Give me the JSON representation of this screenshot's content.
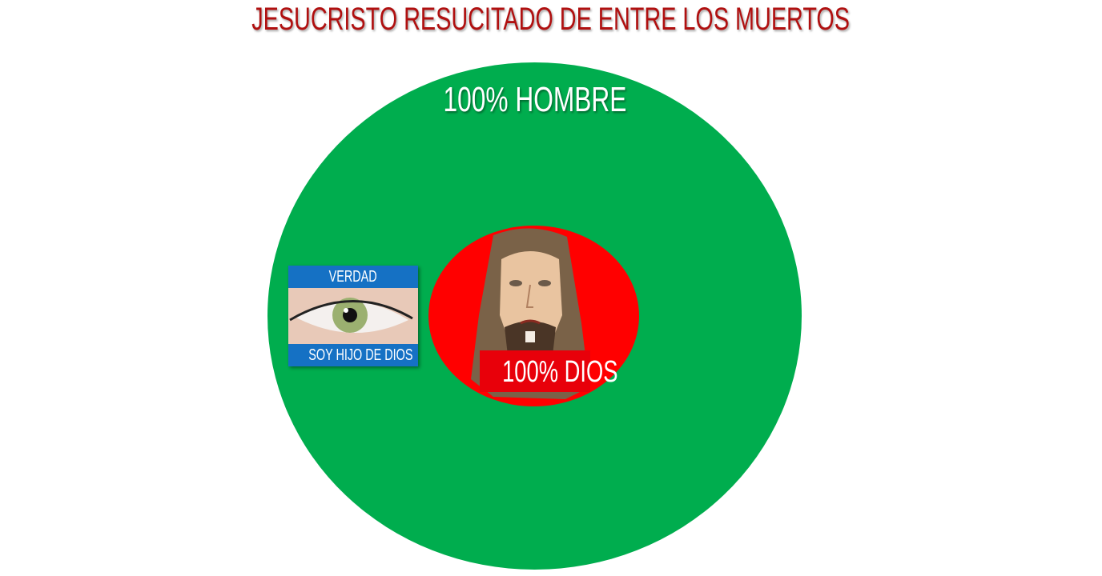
{
  "title": "JESUCRISTO RESUCITADO DE ENTRE LOS MUERTOS",
  "outer_circle": {
    "label": "100% HOMBRE",
    "color": "#00ad4e"
  },
  "inner_circle": {
    "label": "100% DIOS",
    "color": "#ff0000",
    "image": "jesus-watercolor-portrait"
  },
  "card": {
    "top_label": "VERDAD",
    "bottom_label": "SOY HIJO DE DIOS",
    "image": "green-eye",
    "color": "#1571c4"
  },
  "colors": {
    "title": "#b01010"
  }
}
